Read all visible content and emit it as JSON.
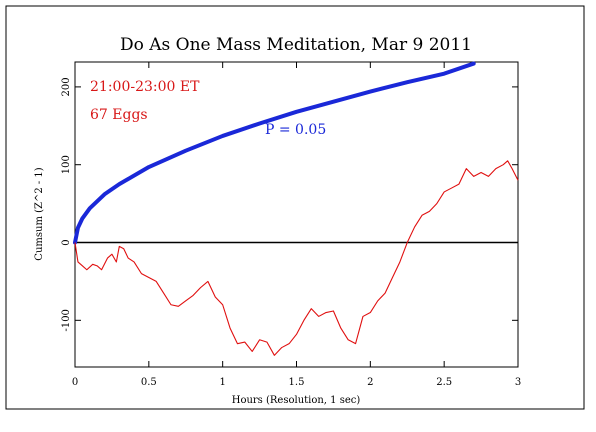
{
  "chart_data": {
    "type": "line",
    "title": "Do As One Mass Meditation, Mar 9 2011",
    "xlabel": "Hours (Resolution, 1 sec)",
    "ylabel": "Cumsum (Z^2 - 1)",
    "xlim": [
      0,
      3
    ],
    "ylim": [
      -160,
      232
    ],
    "xticks": [
      0,
      0.5,
      1,
      1.5,
      2,
      2.5,
      3
    ],
    "xtick_labels": [
      "0",
      "0.5",
      "1",
      "1.5",
      "2",
      "2.5",
      "3"
    ],
    "yticks": [
      -100,
      0,
      100,
      200
    ],
    "ytick_labels": [
      "-100",
      "0",
      "100",
      "200"
    ],
    "grid": false,
    "annotations": {
      "time_range": "21:00-23:00 ET",
      "eggs": "67 Eggs",
      "p_label": "P = 0.05"
    },
    "colors": {
      "cumsum": "#e01010",
      "p_envelope": "#1a28d8",
      "zero_line": "#000000",
      "annotation_red": "#d81818",
      "annotation_blue": "#1a28d8"
    },
    "series": [
      {
        "kind": "p-envelope",
        "x": [
          0,
          0.02,
          0.05,
          0.1,
          0.2,
          0.3,
          0.5,
          0.75,
          1.0,
          1.25,
          1.5,
          1.75,
          2.0,
          2.25,
          2.5,
          2.7
        ],
        "values": [
          0,
          19,
          31,
          44,
          62,
          75,
          97,
          118,
          137,
          153,
          168,
          181,
          194,
          206,
          217,
          230
        ]
      },
      {
        "kind": "cumsum",
        "x": [
          0,
          0.02,
          0.05,
          0.08,
          0.12,
          0.15,
          0.18,
          0.22,
          0.25,
          0.28,
          0.3,
          0.33,
          0.36,
          0.4,
          0.45,
          0.5,
          0.55,
          0.6,
          0.65,
          0.7,
          0.75,
          0.8,
          0.85,
          0.9,
          0.95,
          1.0,
          1.05,
          1.1,
          1.15,
          1.2,
          1.25,
          1.3,
          1.35,
          1.4,
          1.45,
          1.5,
          1.55,
          1.6,
          1.65,
          1.7,
          1.75,
          1.8,
          1.85,
          1.9,
          1.95,
          2.0,
          2.05,
          2.1,
          2.15,
          2.2,
          2.25,
          2.3,
          2.35,
          2.4,
          2.45,
          2.5,
          2.55,
          2.6,
          2.65,
          2.7,
          2.75,
          2.8,
          2.85,
          2.9,
          2.93,
          2.96,
          3.0
        ],
        "values": [
          0,
          -25,
          -30,
          -35,
          -28,
          -30,
          -35,
          -20,
          -15,
          -25,
          -5,
          -8,
          -20,
          -25,
          -40,
          -45,
          -50,
          -65,
          -80,
          -82,
          -75,
          -68,
          -58,
          -50,
          -70,
          -80,
          -110,
          -130,
          -128,
          -140,
          -125,
          -128,
          -145,
          -135,
          -130,
          -118,
          -100,
          -85,
          -95,
          -90,
          -88,
          -110,
          -125,
          -130,
          -95,
          -90,
          -75,
          -65,
          -45,
          -25,
          0,
          20,
          35,
          40,
          50,
          65,
          70,
          75,
          95,
          85,
          90,
          85,
          95,
          100,
          105,
          95,
          80
        ]
      }
    ]
  }
}
